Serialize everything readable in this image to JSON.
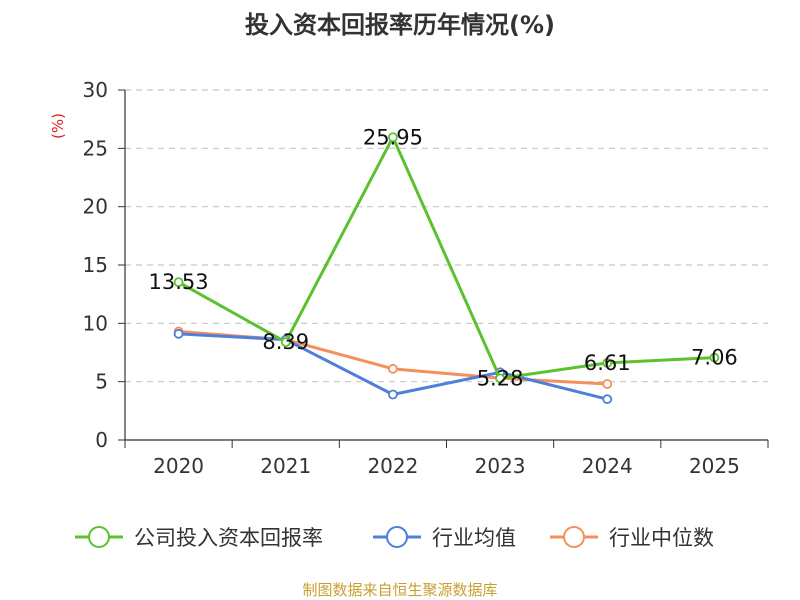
{
  "chart_data": {
    "type": "line",
    "title": "投入资本回报率历年情况(%)",
    "ylabel": "(%)",
    "categories": [
      "2020",
      "2021",
      "2022",
      "2023",
      "2024",
      "2025"
    ],
    "ylim": [
      0,
      30
    ],
    "yticks": [
      0,
      5,
      10,
      15,
      20,
      25,
      30
    ],
    "grid": true,
    "legend_position": "bottom",
    "series": [
      {
        "name": "公司投入资本回报率",
        "color": "#5cc12f",
        "values": [
          13.53,
          8.39,
          25.95,
          5.28,
          6.61,
          7.06
        ],
        "labels": [
          "13.53",
          "8.39",
          "25.95",
          "5.28",
          "6.61",
          "7.06"
        ]
      },
      {
        "name": "行业均值",
        "color": "#4f7fdb",
        "values": [
          9.1,
          8.6,
          3.9,
          5.8,
          3.5,
          null
        ]
      },
      {
        "name": "行业中位数",
        "color": "#f5905a",
        "values": [
          9.3,
          8.6,
          6.1,
          5.3,
          4.8,
          null
        ]
      }
    ],
    "source": "制图数据来自恒生聚源数据库"
  }
}
